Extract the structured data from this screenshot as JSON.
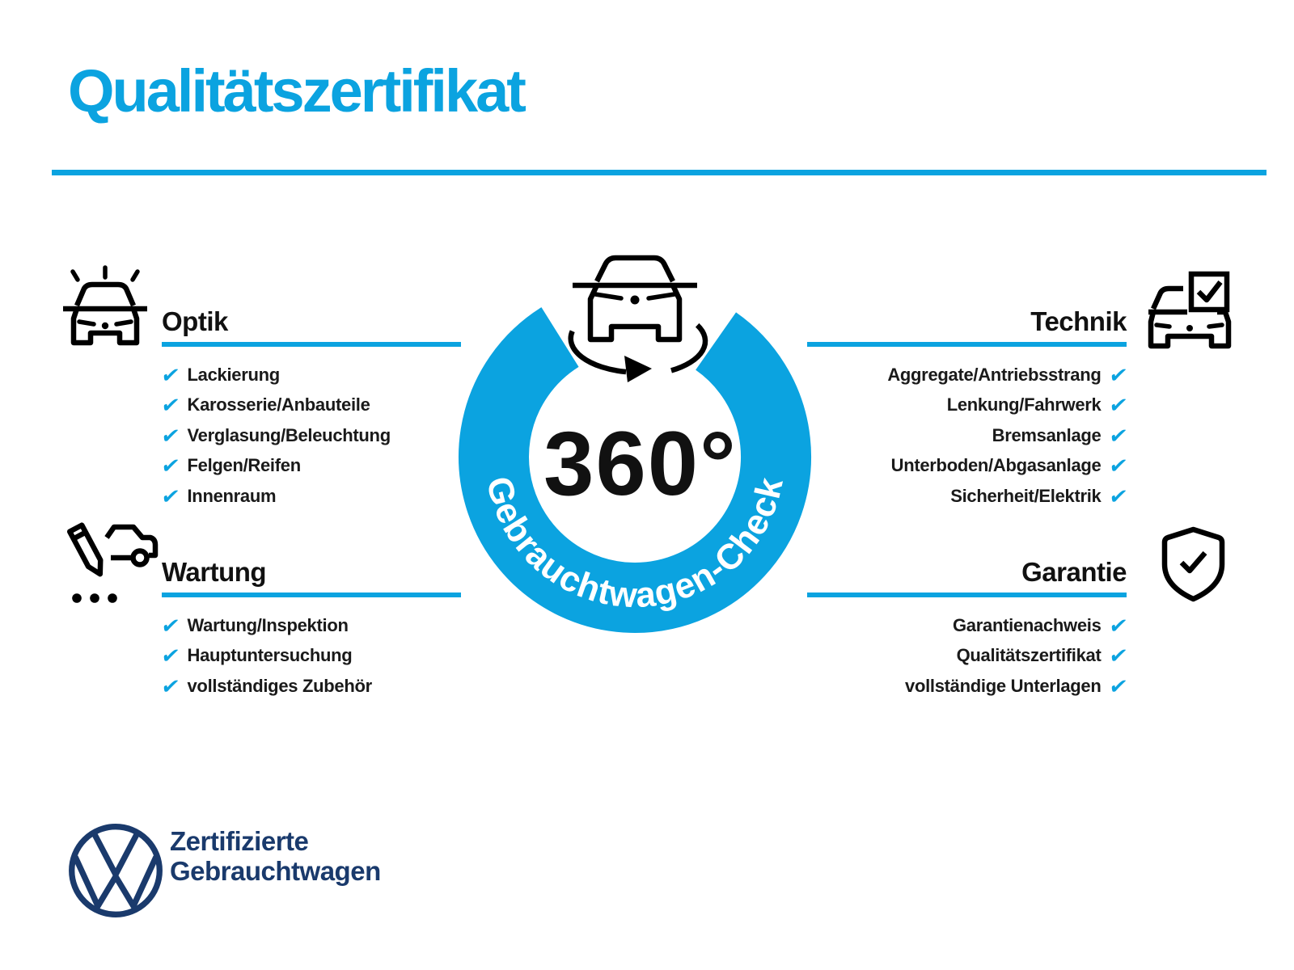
{
  "colors": {
    "accent": "#0ba3e0",
    "navy": "#1a3a6c",
    "heading_text": "#111111",
    "item_text": "#1a1a1a",
    "badge_number_text": "#111111",
    "ring_text": "#ffffff"
  },
  "check_glyph": "✔",
  "header": {
    "title": "Qualitätszertifikat"
  },
  "badge": {
    "degrees_label": "360°",
    "ring_label": "Gebrauchtwagen-Check"
  },
  "sections": {
    "optik": {
      "title": "Optik",
      "items": [
        "Lackierung",
        "Karosserie/Anbauteile",
        "Verglasung/Beleuchtung",
        "Felgen/Reifen",
        "Innenraum"
      ]
    },
    "wartung": {
      "title": "Wartung",
      "items": [
        "Wartung/Inspektion",
        "Hauptuntersuchung",
        "vollständiges Zubehör"
      ]
    },
    "technik": {
      "title": "Technik",
      "items": [
        "Aggregate/Antriebsstrang",
        "Lenkung/Fahrwerk",
        "Bremsanlage",
        "Unterboden/Abgasanlage",
        "Sicherheit/Elektrik"
      ]
    },
    "garantie": {
      "title": "Garantie",
      "items": [
        "Garantienachweis",
        "Qualitätszertifikat",
        "vollständige Unterlagen"
      ]
    }
  },
  "footer": {
    "brand_line1": "Zertifizierte",
    "brand_line2": "Gebrauchtwagen"
  }
}
